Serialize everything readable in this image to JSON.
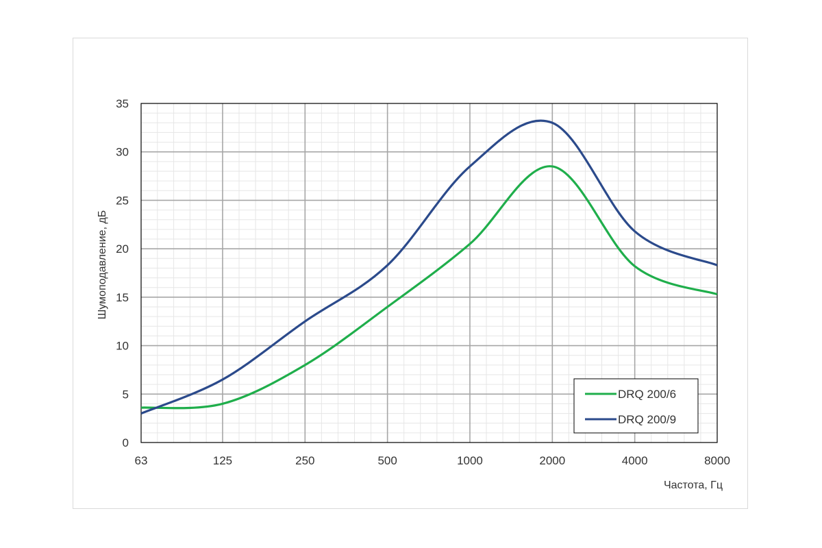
{
  "chart_data": {
    "type": "line",
    "title": "",
    "xlabel": "Частота, Гц",
    "ylabel": "Шумоподавление, дБ",
    "x_scale": "log2",
    "categories": [
      "63",
      "125",
      "250",
      "500",
      "1000",
      "2000",
      "4000",
      "8000"
    ],
    "x": [
      63,
      125,
      250,
      500,
      1000,
      2000,
      4000,
      8000
    ],
    "ylim": [
      0,
      35
    ],
    "yticks": [
      "0",
      "5",
      "10",
      "15",
      "20",
      "25",
      "30",
      "35"
    ],
    "grid": true,
    "legend_position": "bottom-right",
    "series": [
      {
        "name": "DRQ 200/6",
        "color": "#1fae4b",
        "values": [
          3.6,
          4.0,
          8.0,
          14.0,
          20.5,
          28.5,
          18.2,
          15.3
        ]
      },
      {
        "name": "DRQ 200/9",
        "color": "#2b4a8b",
        "values": [
          3.0,
          6.5,
          12.5,
          18.3,
          28.5,
          33.0,
          21.8,
          18.3
        ]
      }
    ]
  }
}
